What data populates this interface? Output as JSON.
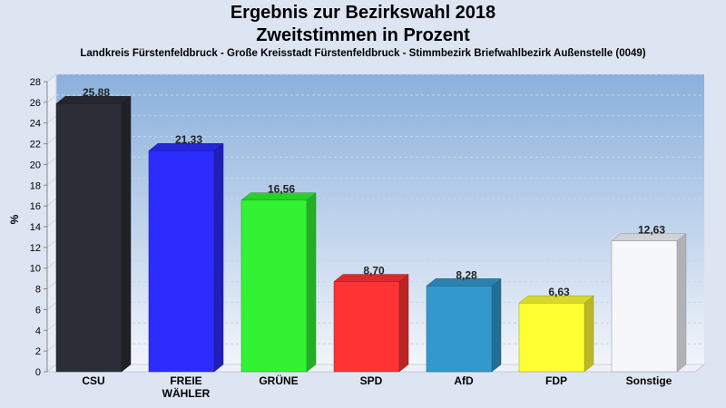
{
  "chart_data": {
    "type": "bar",
    "title": "Ergebnis zur Bezirkswahl 2018",
    "subtitle": "Zweitstimmen in Prozent",
    "caption": "Landkreis Fürstenfeldbruck - Große Kreisstadt Fürstenfeldbruck - Stimmbezirk Briefwahlbezirk Außenstelle (0049)",
    "ylabel": "%",
    "xlabel": "",
    "ylim": [
      0,
      28
    ],
    "ytick_step": 2,
    "grid": true,
    "categories": [
      "CSU",
      "FREIE\nWÄHLER",
      "GRÜNE",
      "SPD",
      "AfD",
      "FDP",
      "Sonstige"
    ],
    "values": [
      25.88,
      21.33,
      16.56,
      8.7,
      8.28,
      6.63,
      12.63
    ],
    "value_labels": [
      "25,88",
      "21,33",
      "16,56",
      "8,70",
      "8,28",
      "6,63",
      "12,63"
    ],
    "colors": [
      "#2b2e36",
      "#2c2cff",
      "#33f233",
      "#ff3333",
      "#3399cc",
      "#ffff33",
      "#f6f7fb"
    ]
  }
}
